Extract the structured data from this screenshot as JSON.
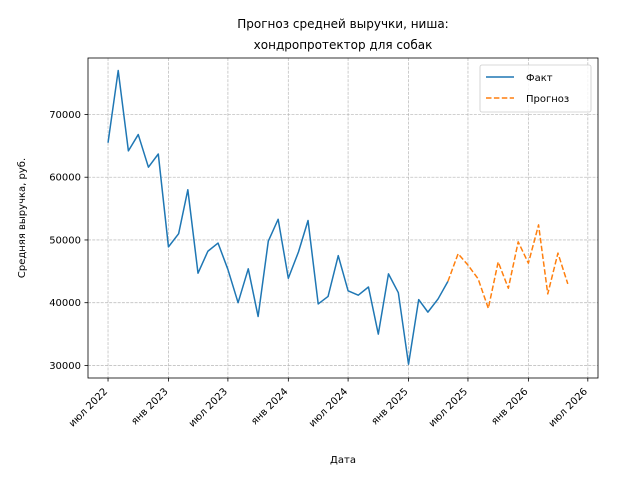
{
  "chart_data": {
    "type": "line",
    "title_line1": "Прогноз средней выручки, ниша:",
    "title_line2": "хондропротектор для собак",
    "xlabel": "Дата",
    "ylabel": "Средняя выручка, руб.",
    "ylim": [
      28000,
      79000
    ],
    "xlim": [
      "2022-05-01",
      "2026-08-01"
    ],
    "y_ticks": [
      30000,
      40000,
      50000,
      60000,
      70000
    ],
    "x_ticks": [
      {
        "date": "2022-07-01",
        "label": "июл 2022"
      },
      {
        "date": "2023-01-01",
        "label": "янв 2023"
      },
      {
        "date": "2023-07-01",
        "label": "июл 2023"
      },
      {
        "date": "2024-01-01",
        "label": "янв 2024"
      },
      {
        "date": "2024-07-01",
        "label": "июл 2024"
      },
      {
        "date": "2025-01-01",
        "label": "янв 2025"
      },
      {
        "date": "2025-07-01",
        "label": "июл 2025"
      },
      {
        "date": "2026-01-01",
        "label": "янв 2026"
      },
      {
        "date": "2026-07-01",
        "label": "июл 2026"
      }
    ],
    "grid": true,
    "legend_position": "top-right",
    "series": [
      {
        "name": "Факт",
        "color": "#1f77b4",
        "style": "solid",
        "points": [
          [
            "2022-07-01",
            65500
          ],
          [
            "2022-08-01",
            77000
          ],
          [
            "2022-09-01",
            64200
          ],
          [
            "2022-10-01",
            66800
          ],
          [
            "2022-11-01",
            61600
          ],
          [
            "2022-12-01",
            63700
          ],
          [
            "2023-01-01",
            48900
          ],
          [
            "2023-02-01",
            51000
          ],
          [
            "2023-03-01",
            58000
          ],
          [
            "2023-04-01",
            44700
          ],
          [
            "2023-05-01",
            48200
          ],
          [
            "2023-06-01",
            49500
          ],
          [
            "2023-07-01",
            45300
          ],
          [
            "2023-08-01",
            40000
          ],
          [
            "2023-09-01",
            45400
          ],
          [
            "2023-10-01",
            37800
          ],
          [
            "2023-11-01",
            49800
          ],
          [
            "2023-12-01",
            53300
          ],
          [
            "2024-01-01",
            43900
          ],
          [
            "2024-02-01",
            48100
          ],
          [
            "2024-03-01",
            53100
          ],
          [
            "2024-04-01",
            39800
          ],
          [
            "2024-05-01",
            41000
          ],
          [
            "2024-06-01",
            47500
          ],
          [
            "2024-07-01",
            41900
          ],
          [
            "2024-08-01",
            41200
          ],
          [
            "2024-09-01",
            42500
          ],
          [
            "2024-10-01",
            35000
          ],
          [
            "2024-11-01",
            44600
          ],
          [
            "2024-12-01",
            41600
          ],
          [
            "2025-01-01",
            30200
          ],
          [
            "2025-02-01",
            40500
          ],
          [
            "2025-03-01",
            38500
          ],
          [
            "2025-04-01",
            40600
          ],
          [
            "2025-05-01",
            43400
          ]
        ]
      },
      {
        "name": "Прогноз",
        "color": "#ff7f0e",
        "style": "dashed",
        "points": [
          [
            "2025-05-01",
            43400
          ],
          [
            "2025-06-01",
            47800
          ],
          [
            "2025-07-01",
            46000
          ],
          [
            "2025-08-01",
            43800
          ],
          [
            "2025-09-01",
            39100
          ],
          [
            "2025-10-01",
            46500
          ],
          [
            "2025-11-01",
            42300
          ],
          [
            "2025-12-01",
            49700
          ],
          [
            "2026-01-01",
            46300
          ],
          [
            "2026-02-01",
            52400
          ],
          [
            "2026-03-01",
            41400
          ],
          [
            "2026-04-01",
            47900
          ],
          [
            "2026-05-01",
            43000
          ]
        ]
      }
    ]
  }
}
